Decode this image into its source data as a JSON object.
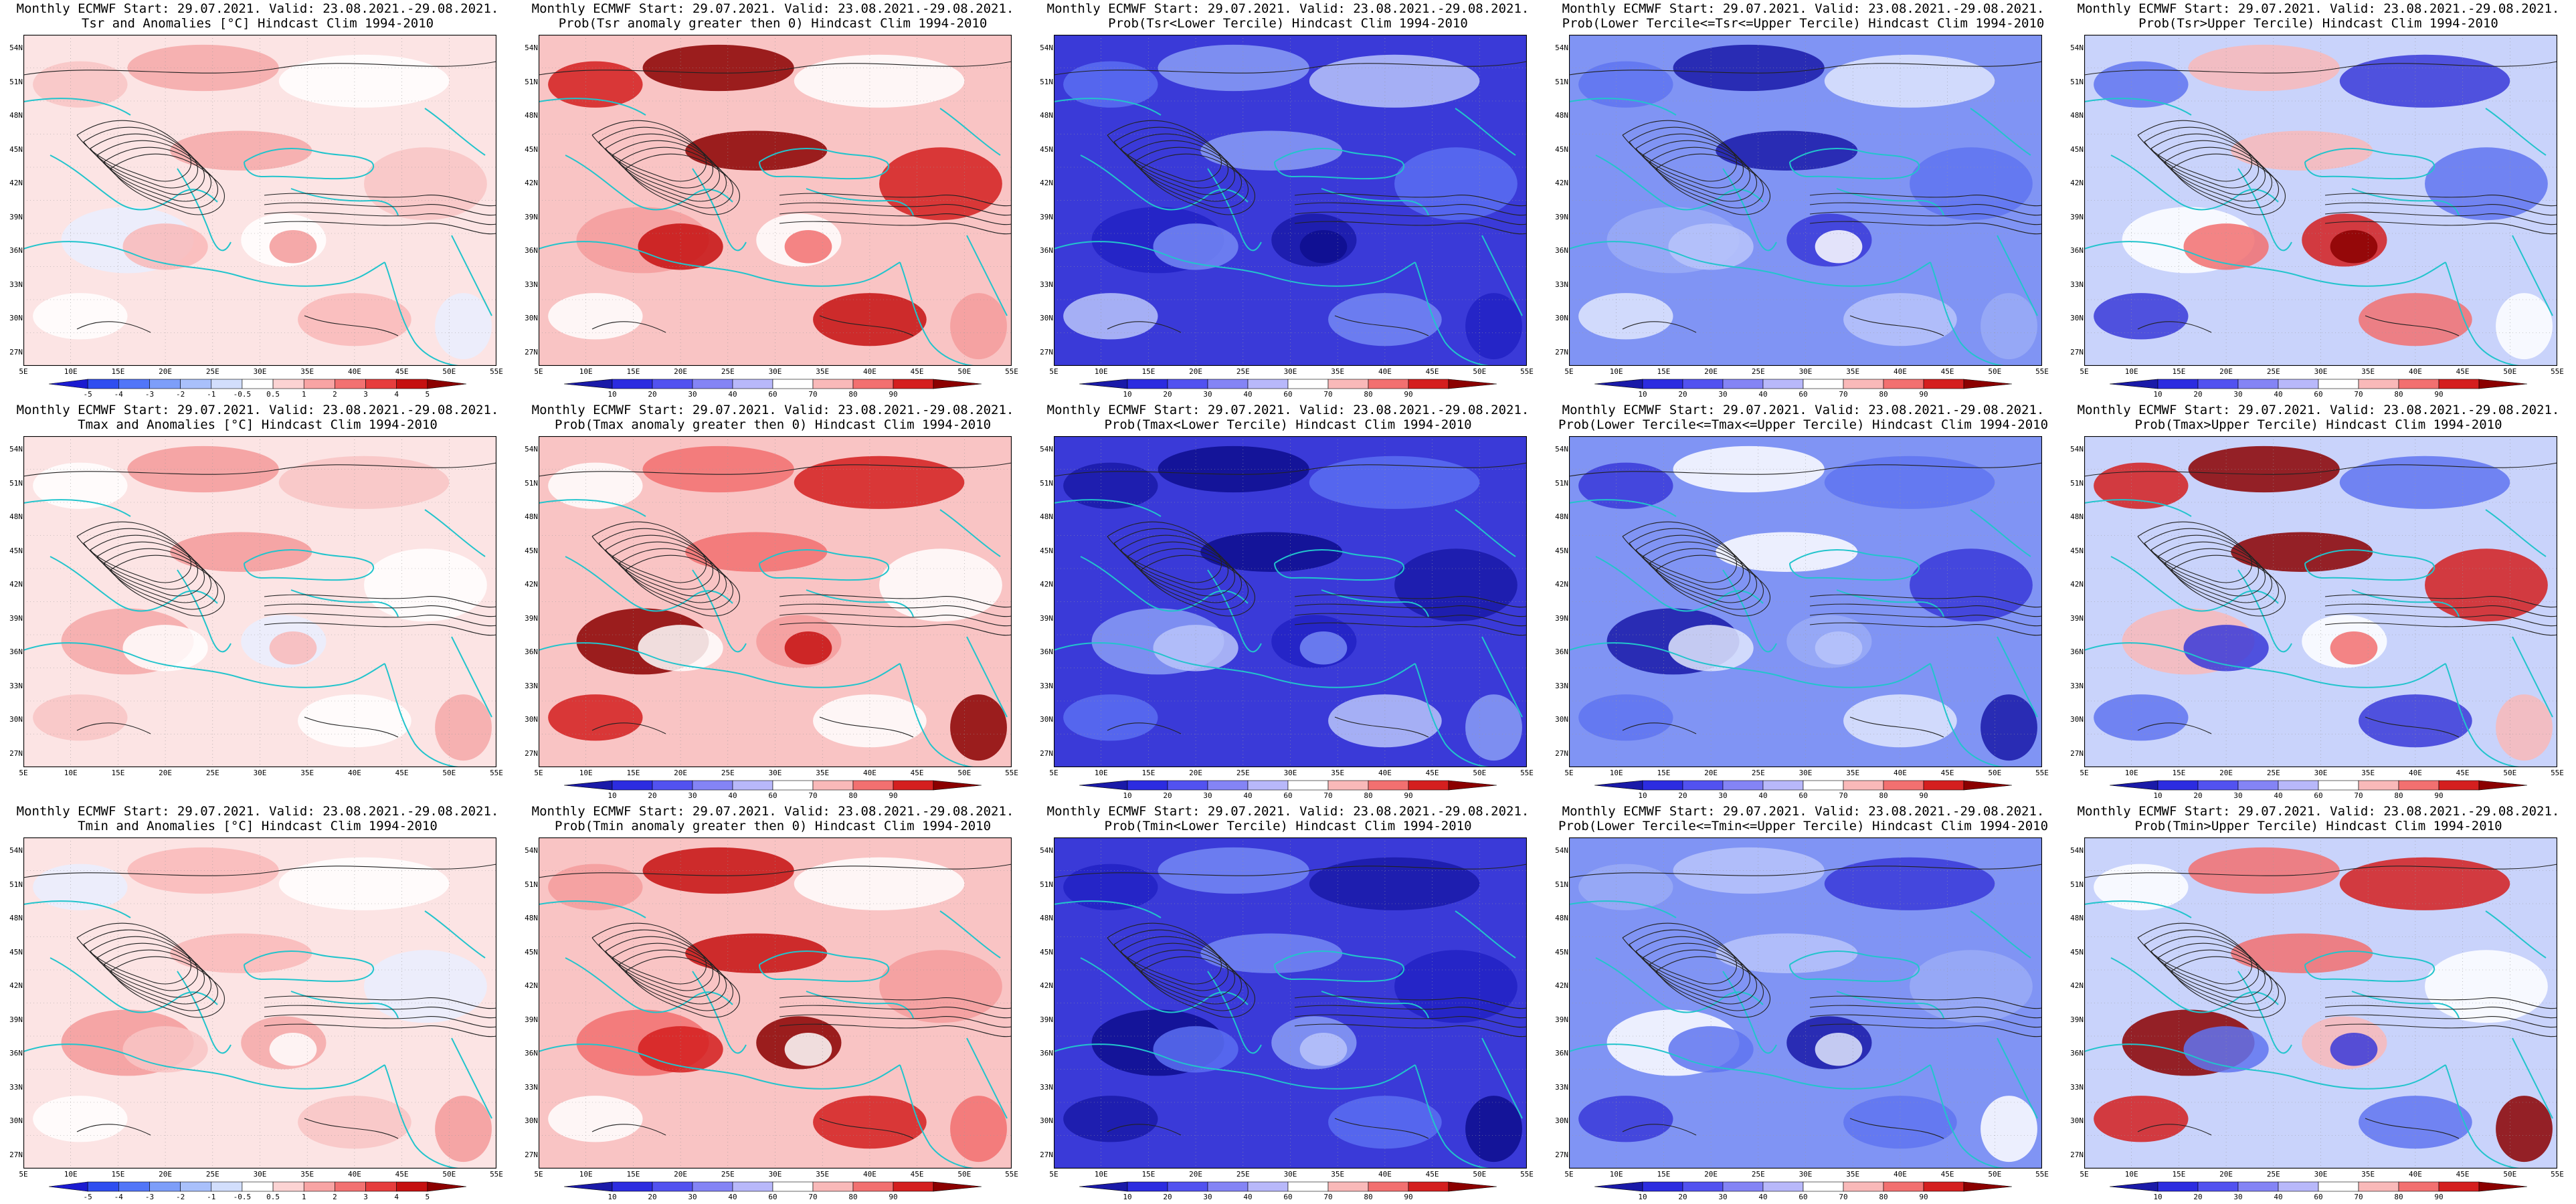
{
  "lat_labels": [
    "54N",
    "51N",
    "48N",
    "45N",
    "42N",
    "39N",
    "36N",
    "33N",
    "30N",
    "27N"
  ],
  "lon_labels": [
    "5E",
    "10E",
    "15E",
    "20E",
    "25E",
    "30E",
    "35E",
    "40E",
    "45E",
    "50E",
    "55E"
  ],
  "legends": {
    "anomaly": {
      "labels": [
        "-5",
        "-4",
        "-3",
        "-2",
        "-1",
        "-0.5",
        "0.5",
        "1",
        "2",
        "3",
        "4",
        "5"
      ],
      "colors": [
        "#1b1bd0",
        "#2f4ef0",
        "#5276f8",
        "#7d9ef9",
        "#a9c0fb",
        "#d2defc",
        "#ffffff",
        "#fcd3d3",
        "#f8a4a4",
        "#f27171",
        "#e63d3d",
        "#c51010",
        "#8b0000"
      ]
    },
    "prob": {
      "labels": [
        "10",
        "20",
        "30",
        "40",
        "60",
        "70",
        "80",
        "90"
      ],
      "colors": [
        "#1a1aa8",
        "#2c2ce0",
        "#5252f0",
        "#8484f5",
        "#b8b8fa",
        "#ffffff",
        "#f9b9b9",
        "#f27070",
        "#d41f1f",
        "#8b0000"
      ]
    }
  },
  "panels": [
    {
      "line1": "Monthly ECMWF Start: 29.07.2021. Valid: 23.08.2021.-29.08.2021.",
      "line2": "Tsr and Anomalies [°C] Hindcast Clim 1994-2010",
      "legend": "anomaly",
      "palette": "anomaly-light"
    },
    {
      "line1": "Monthly ECMWF Start: 29.07.2021. Valid: 23.08.2021.-29.08.2021.",
      "line2": "Prob(Tsr anomaly greater then 0) Hindcast Clim 1994-2010",
      "legend": "prob",
      "palette": "prob-warm"
    },
    {
      "line1": "Monthly ECMWF Start: 29.07.2021. Valid: 23.08.2021.-29.08.2021.",
      "line2": "Prob(Tsr<Lower Tercile) Hindcast Clim 1994-2010",
      "legend": "prob",
      "palette": "prob-blue"
    },
    {
      "line1": "Monthly ECMWF Start: 29.07.2021. Valid: 23.08.2021.-29.08.2021.",
      "line2": "Prob(Lower Tercile<=Tsr<=Upper Tercile) Hindcast Clim 1994-2010",
      "legend": "prob",
      "palette": "prob-mixed"
    },
    {
      "line1": "Monthly ECMWF Start: 29.07.2021. Valid: 23.08.2021.-29.08.2021.",
      "line2": "Prob(Tsr>Upper Tercile) Hindcast Clim 1994-2010",
      "legend": "prob",
      "palette": "prob-upper"
    },
    {
      "line1": "Monthly ECMWF Start: 29.07.2021. Valid: 23.08.2021.-29.08.2021.",
      "line2": "Tmax and Anomalies [°C] Hindcast Clim 1994-2010",
      "legend": "none",
      "palette": "anomaly-light"
    },
    {
      "line1": "Monthly ECMWF Start: 29.07.2021. Valid: 23.08.2021.-29.08.2021.",
      "line2": "Prob(Tmax anomaly greater then 0) Hindcast Clim 1994-2010",
      "legend": "prob",
      "palette": "prob-warm"
    },
    {
      "line1": "Monthly ECMWF Start: 29.07.2021. Valid: 23.08.2021.-29.08.2021.",
      "line2": "Prob(Tmax<Lower Tercile) Hindcast Clim 1994-2010",
      "legend": "prob",
      "palette": "prob-blue"
    },
    {
      "line1": "Monthly ECMWF Start: 29.07.2021. Valid: 23.08.2021.-29.08.2021.",
      "line2": "Prob(Lower Tercile<=Tmax<=Upper Tercile) Hindcast Clim 1994-2010",
      "legend": "prob",
      "palette": "prob-mixed"
    },
    {
      "line1": "Monthly ECMWF Start: 29.07.2021. Valid: 23.08.2021.-29.08.2021.",
      "line2": "Prob(Tmax>Upper Tercile) Hindcast Clim 1994-2010",
      "legend": "prob",
      "palette": "prob-upper"
    },
    {
      "line1": "Monthly ECMWF Start: 29.07.2021. Valid: 23.08.2021.-29.08.2021.",
      "line2": "Tmin and Anomalies [°C] Hindcast Clim 1994-2010",
      "legend": "anomaly",
      "palette": "anomaly-light"
    },
    {
      "line1": "Monthly ECMWF Start: 29.07.2021. Valid: 23.08.2021.-29.08.2021.",
      "line2": "Prob(Tmin anomaly greater then 0) Hindcast Clim 1994-2010",
      "legend": "prob",
      "palette": "prob-warm"
    },
    {
      "line1": "Monthly ECMWF Start: 29.07.2021. Valid: 23.08.2021.-29.08.2021.",
      "line2": "Prob(Tmin<Lower Tercile) Hindcast Clim 1994-2010",
      "legend": "prob",
      "palette": "prob-blue"
    },
    {
      "line1": "Monthly ECMWF Start: 29.07.2021. Valid: 23.08.2021.-29.08.2021.",
      "line2": "Prob(Lower Tercile<=Tmin<=Upper Tercile) Hindcast Clim 1994-2010",
      "legend": "prob",
      "palette": "prob-mixed"
    },
    {
      "line1": "Monthly ECMWF Start: 29.07.2021. Valid: 23.08.2021.-29.08.2021.",
      "line2": "Prob(Tmin>Upper Tercile) Hindcast Clim 1994-2010",
      "legend": "prob",
      "palette": "prob-upper"
    }
  ]
}
